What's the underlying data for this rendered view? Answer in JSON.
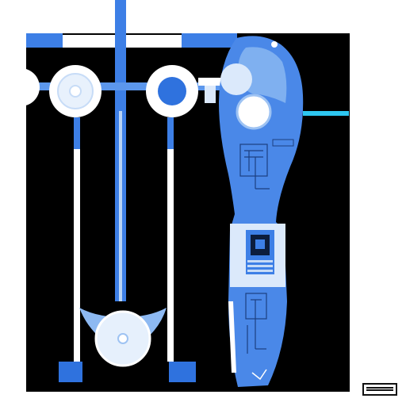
{
  "colors": {
    "background": "#000000",
    "canvas": "#ffffff",
    "primary_blue": "#3d7fe6",
    "light_blue": "#7fb0f0",
    "pale_blue": "#dbe9fb",
    "cyan_accent": "#2ec6f0",
    "ink": "#111111"
  },
  "icons": [
    "three-disc-rack",
    "pendulum-disc",
    "blue-figure-silhouette",
    "circuit-panel",
    "corner-badge"
  ]
}
